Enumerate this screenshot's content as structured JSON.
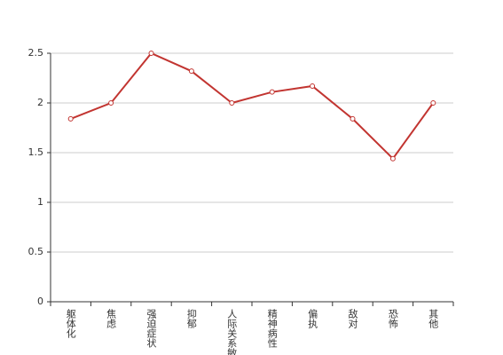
{
  "chart_data": {
    "type": "line",
    "categories": [
      "躯体化",
      "焦虑",
      "强迫症状",
      "抑郁",
      "人际关系敏感",
      "精神病性",
      "偏执",
      "敌对",
      "恐怖",
      "其他"
    ],
    "series": [
      {
        "name": null,
        "color": "#c23531",
        "values": [
          1.84,
          2.0,
          2.5,
          2.32,
          2.0,
          2.11,
          2.17,
          1.84,
          1.44,
          2.0
        ]
      }
    ],
    "ylim": [
      0,
      2.5
    ],
    "yticks": [
      0,
      0.5,
      1,
      1.5,
      2,
      2.5
    ],
    "grid": true
  }
}
